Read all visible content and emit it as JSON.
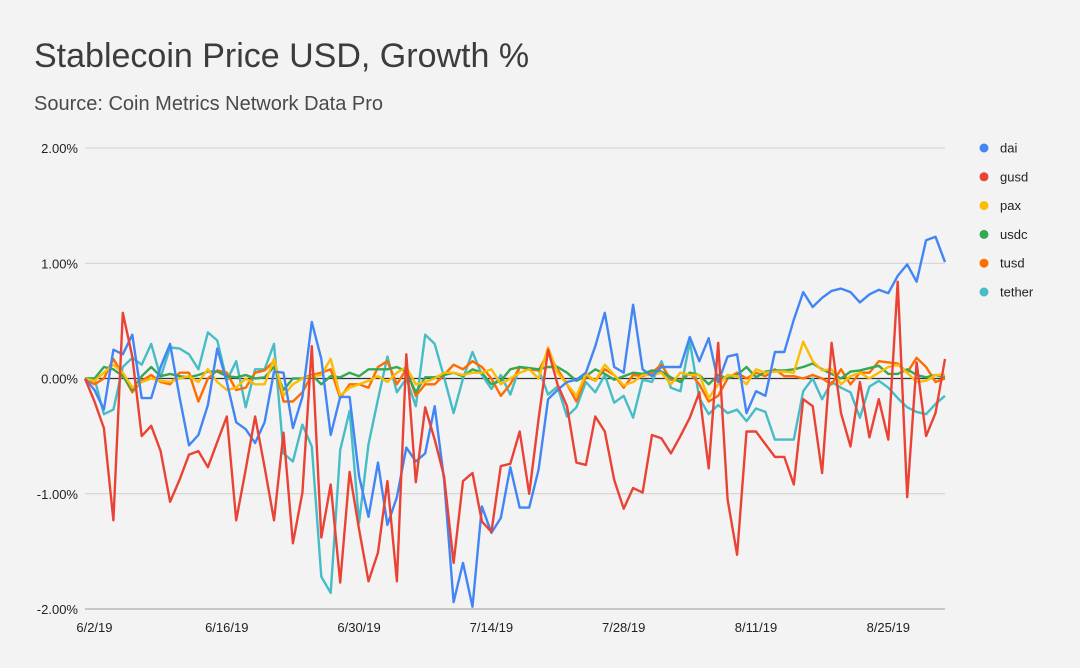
{
  "chart_data": {
    "type": "line",
    "title": "Stablecoin Price USD, Growth %",
    "subtitle": "Source: Coin Metrics Network Data Pro",
    "xlabel": "",
    "ylabel": "",
    "x_start_date": "6/1/19",
    "x_step_days": 1,
    "x_ticks": [
      {
        "index": 1,
        "label": "6/2/19"
      },
      {
        "index": 15,
        "label": "6/16/19"
      },
      {
        "index": 29,
        "label": "6/30/19"
      },
      {
        "index": 43,
        "label": "7/14/19"
      },
      {
        "index": 57,
        "label": "7/28/19"
      },
      {
        "index": 71,
        "label": "8/11/19"
      },
      {
        "index": 85,
        "label": "8/25/19"
      }
    ],
    "ylim": [
      -2,
      2
    ],
    "y_ticks": [
      {
        "value": 2,
        "label": "2.00%"
      },
      {
        "value": 1,
        "label": "1.00%"
      },
      {
        "value": 0,
        "label": "0.00%"
      },
      {
        "value": -1,
        "label": "-1.00%"
      },
      {
        "value": -2,
        "label": "-2.00%"
      }
    ],
    "grid": true,
    "legend_position": "right",
    "series": [
      {
        "name": "dai",
        "color": "#4285f4",
        "values": [
          0,
          -0.1,
          -0.27,
          0.25,
          0.21,
          0.38,
          -0.17,
          -0.17,
          0.1,
          0.3,
          -0.16,
          -0.58,
          -0.49,
          -0.23,
          0.26,
          -0.03,
          -0.38,
          -0.44,
          -0.56,
          -0.38,
          0.06,
          0.05,
          -0.43,
          -0.16,
          0.49,
          0.17,
          -0.49,
          -0.16,
          -0.16,
          -0.85,
          -1.2,
          -0.73,
          -1.27,
          -1.03,
          -0.6,
          -0.72,
          -0.65,
          -0.24,
          -0.88,
          -1.94,
          -1.6,
          -1.98,
          -1.11,
          -1.34,
          -1.21,
          -0.77,
          -1.12,
          -1.12,
          -0.79,
          -0.18,
          -0.1,
          -0.03,
          -0.01,
          0.05,
          0.28,
          0.57,
          0.1,
          0.05,
          0.64,
          0.08,
          0.02,
          0.1,
          0.1,
          0.1,
          0.36,
          0.15,
          0.35,
          -0.03,
          0.19,
          0.21,
          -0.3,
          -0.11,
          -0.15,
          0.23,
          0.23,
          0.51,
          0.75,
          0.62,
          0.7,
          0.76,
          0.78,
          0.75,
          0.66,
          0.73,
          0.77,
          0.74,
          0.89,
          0.99,
          0.84,
          1.2,
          1.23,
          1.01
        ]
      },
      {
        "name": "gusd",
        "color": "#ea4335",
        "values": [
          0,
          -0.2,
          -0.43,
          -1.23,
          0.57,
          0.19,
          -0.5,
          -0.41,
          -0.63,
          -1.07,
          -0.88,
          -0.66,
          -0.63,
          -0.77,
          -0.55,
          -0.33,
          -1.23,
          -0.79,
          -0.33,
          -0.77,
          -1.23,
          -0.47,
          -1.43,
          -0.99,
          0.28,
          -1.38,
          -0.92,
          -1.77,
          -0.81,
          -1.31,
          -1.76,
          -1.51,
          -0.89,
          -1.76,
          0.21,
          -0.9,
          -0.25,
          -0.53,
          -0.85,
          -1.6,
          -0.89,
          -0.82,
          -1.24,
          -1.33,
          -0.76,
          -0.74,
          -0.46,
          -1.0,
          -0.35,
          0.25,
          -0.05,
          -0.24,
          -0.73,
          -0.75,
          -0.33,
          -0.46,
          -0.88,
          -1.13,
          -0.95,
          -0.99,
          -0.49,
          -0.52,
          -0.65,
          -0.5,
          -0.34,
          -0.12,
          -0.78,
          0.31,
          -1.05,
          -1.53,
          -0.46,
          -0.46,
          -0.57,
          -0.68,
          -0.68,
          -0.92,
          -0.18,
          -0.24,
          -0.82,
          0.31,
          -0.3,
          -0.59,
          -0.03,
          -0.51,
          -0.18,
          -0.53,
          0.84,
          -1.03,
          0.14,
          -0.5,
          -0.3,
          0.17
        ]
      },
      {
        "name": "pax",
        "color": "#fbbc04",
        "values": [
          0,
          -0.02,
          0.05,
          0.12,
          0.05,
          -0.08,
          -0.03,
          0,
          -0.02,
          -0.03,
          0,
          0.02,
          -0.03,
          0.08,
          -0.03,
          -0.1,
          -0.08,
          0,
          -0.05,
          -0.05,
          0.17,
          -0.15,
          -0.05,
          0,
          0.02,
          0.03,
          0.17,
          -0.15,
          -0.08,
          -0.05,
          -0.02,
          0.02,
          -0.03,
          0.05,
          0.1,
          -0.05,
          -0.03,
          0,
          0.05,
          0.05,
          0.03,
          0.05,
          0.05,
          0.08,
          -0.05,
          0,
          0.05,
          0.08,
          0,
          0.27,
          0.05,
          -0.05,
          -0.15,
          0.04,
          -0.02,
          0.12,
          0.03,
          -0.06,
          -0.03,
          0.03,
          0.03,
          0.05,
          -0.05,
          0.05,
          0.03,
          0.03,
          -0.17,
          -0.05,
          0.03,
          0.02,
          -0.05,
          0.08,
          0.05,
          0.06,
          0.06,
          0.05,
          0.32,
          0.15,
          0.07,
          0.08,
          -0.05,
          0.02,
          0.05,
          0,
          0.05,
          0.1,
          0.12,
          0.05,
          -0.03,
          -0.02,
          0.03,
          0.03
        ]
      },
      {
        "name": "usdc",
        "color": "#34a853",
        "values": [
          0,
          0,
          0.1,
          0.08,
          0.02,
          -0.1,
          0.02,
          0.1,
          0.02,
          0.04,
          0.02,
          0.01,
          0.03,
          0.06,
          0.06,
          0.02,
          0.01,
          0.03,
          0,
          0.01,
          0.1,
          -0.1,
          0,
          0,
          0.03,
          -0.05,
          0.02,
          0.01,
          0.05,
          0.02,
          0.08,
          0.08,
          0.08,
          0.1,
          0.06,
          -0.12,
          0.01,
          0.01,
          0.03,
          0.05,
          0.02,
          0.08,
          0.05,
          -0.05,
          -0.02,
          0.08,
          0.1,
          0.09,
          0.08,
          0.1,
          0.1,
          0.05,
          -0.02,
          0.02,
          0.08,
          0.04,
          -0.01,
          0.02,
          0.05,
          0.04,
          0.07,
          0.06,
          0.01,
          -0.03,
          0.05,
          0.03,
          -0.05,
          0.03,
          0,
          0.03,
          0.1,
          0.01,
          0.06,
          0.07,
          0.07,
          0.08,
          0.1,
          0.13,
          0.08,
          0.04,
          0,
          0.06,
          0.07,
          0.09,
          0.11,
          0.04,
          0.04,
          0.08,
          0.03,
          0.01,
          0.03,
          0.01
        ]
      },
      {
        "name": "tusd",
        "color": "#ff6d01",
        "values": [
          0,
          -0.05,
          0,
          0.17,
          0.03,
          -0.12,
          -0.02,
          0.03,
          -0.03,
          -0.05,
          0.05,
          0.05,
          -0.2,
          0,
          0.07,
          0.05,
          -0.1,
          -0.08,
          0.05,
          0.07,
          0.15,
          -0.2,
          -0.2,
          -0.12,
          0.03,
          0.05,
          0.08,
          -0.17,
          -0.05,
          -0.05,
          -0.08,
          0.1,
          0.15,
          -0.05,
          0.08,
          -0.15,
          -0.05,
          -0.05,
          0.03,
          0.12,
          0.08,
          0.15,
          0.1,
          0,
          -0.15,
          -0.05,
          0.1,
          0.08,
          0.07,
          0.22,
          0.08,
          -0.05,
          -0.2,
          0.02,
          -0.02,
          0.08,
          0.03,
          -0.08,
          0.03,
          0.02,
          0.05,
          0.12,
          -0.01,
          -0.02,
          0.05,
          -0.05,
          -0.2,
          -0.15,
          0,
          0.05,
          0,
          0.05,
          0.02,
          0.08,
          0.02,
          0.02,
          0,
          0.03,
          0,
          -0.05,
          0.08,
          -0.05,
          0.05,
          0.05,
          0.15,
          0.14,
          0.13,
          0.05,
          0.18,
          0.1,
          -0.03,
          0
        ]
      },
      {
        "name": "tether",
        "color": "#46bdc6",
        "values": [
          0,
          0,
          -0.31,
          -0.27,
          0.1,
          0.18,
          0.12,
          0.3,
          0.01,
          0.27,
          0.26,
          0.21,
          0.08,
          0.4,
          0.33,
          -0.02,
          0.15,
          -0.25,
          0.08,
          0.08,
          0.3,
          -0.65,
          -0.72,
          -0.4,
          -0.59,
          -1.72,
          -1.86,
          -0.62,
          -0.28,
          -1.25,
          -0.57,
          -0.18,
          0.19,
          -0.12,
          0,
          -0.24,
          0.38,
          0.3,
          0.01,
          -0.3,
          0,
          0.23,
          0.03,
          -0.09,
          0.03,
          -0.14,
          0.1,
          0.08,
          0.08,
          -0.14,
          -0.07,
          -0.33,
          -0.25,
          -0.03,
          -0.12,
          0.03,
          -0.21,
          -0.15,
          -0.34,
          -0.01,
          -0.03,
          0.15,
          -0.08,
          -0.11,
          0.32,
          -0.17,
          -0.31,
          -0.23,
          -0.3,
          -0.27,
          -0.37,
          -0.26,
          -0.29,
          -0.53,
          -0.53,
          -0.53,
          -0.11,
          0,
          -0.18,
          -0.03,
          -0.08,
          -0.12,
          -0.34,
          -0.07,
          -0.02,
          -0.08,
          -0.17,
          -0.25,
          -0.29,
          -0.31,
          -0.22,
          -0.15
        ]
      }
    ]
  }
}
